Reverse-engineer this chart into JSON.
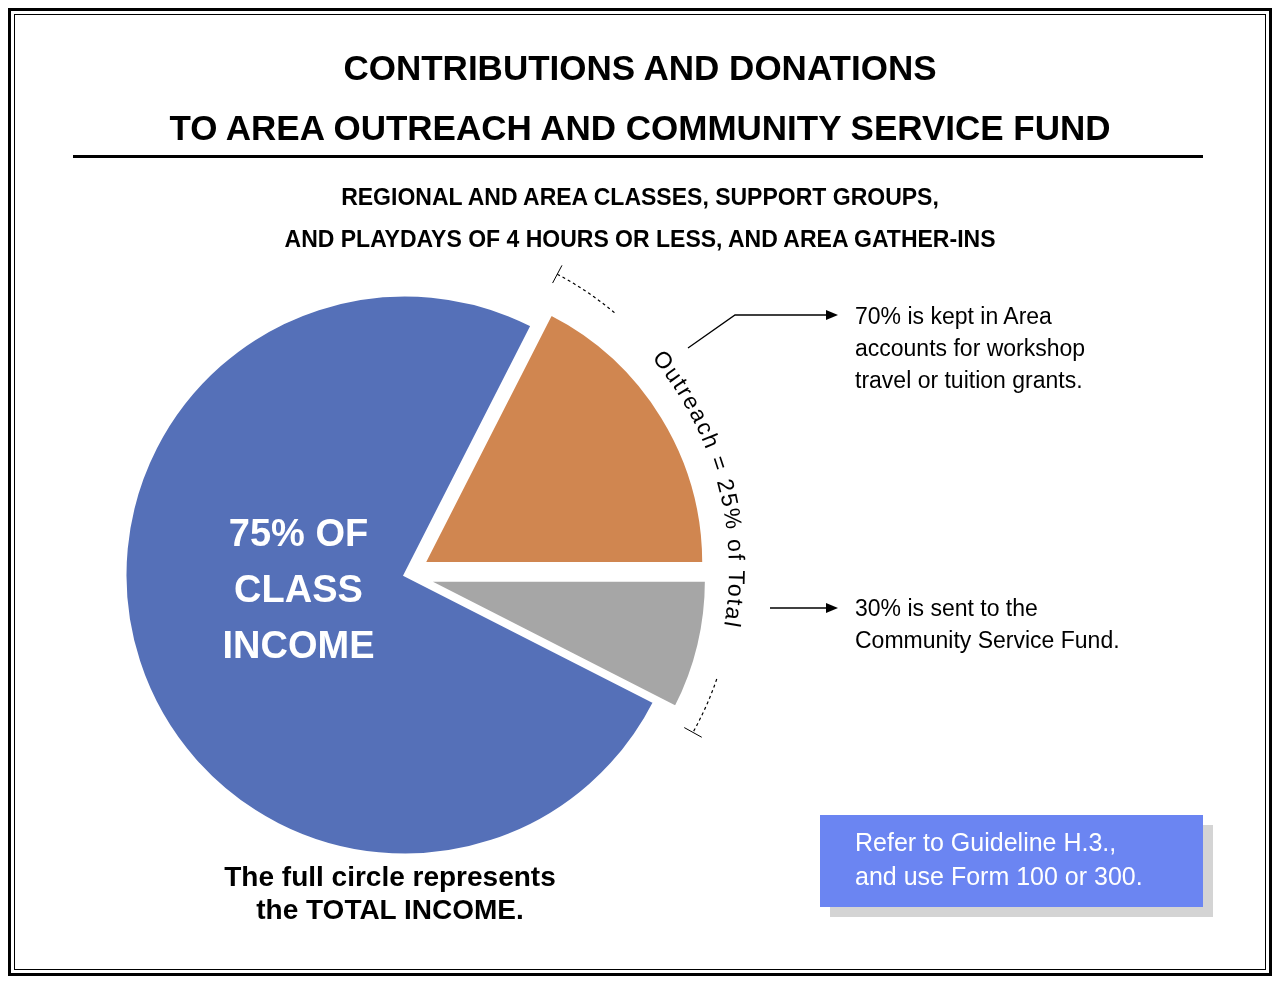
{
  "chart_data": {
    "type": "pie",
    "title": "CONTRIBUTIONS AND DONATIONS\nTO AREA OUTREACH AND COMMUNITY SERVICE FUND",
    "subtitle": "REGIONAL AND AREA CLASSES, SUPPORT GROUPS,\nAND PLAYDAYS OF 4 HOURS OR LESS, AND AREA GATHER-INS",
    "categories": [
      "75% OF\nCLASS\nINCOME",
      null,
      null
    ],
    "values": [
      75,
      17.5,
      7.5
    ],
    "colors": [
      "#5570b8",
      "#d08650",
      "#a6a6a6"
    ],
    "annotations": [
      "Outreach = 25% of Total",
      "70% is kept in Area\naccounts for workshop\ntravel or tuition grants.",
      "30% is sent to the\nCommunity Service Fund.",
      "The full circle represents\nthe TOTAL INCOME.",
      "Refer to Guideline H.3.,\nand use Form 100 or 300."
    ]
  }
}
